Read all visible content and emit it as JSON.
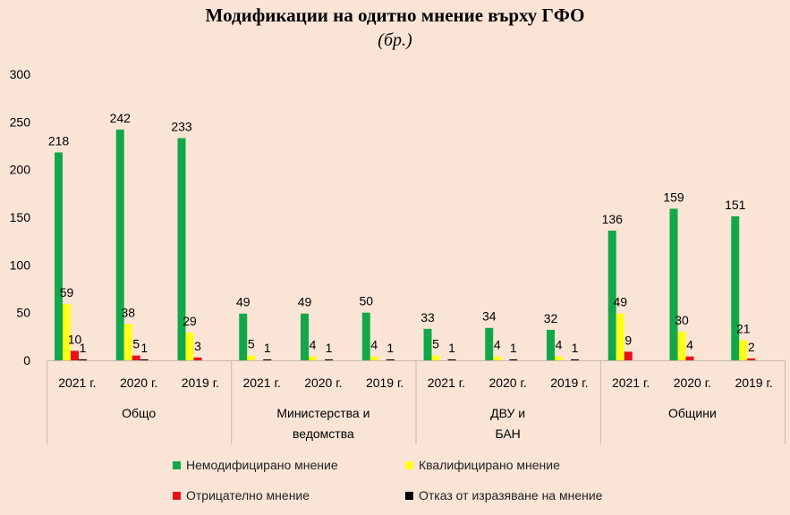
{
  "chart_data": {
    "type": "bar",
    "title": "Модификации на одитно мнение върху ГФО",
    "subtitle": "(бр.)",
    "ylim": [
      0,
      300
    ],
    "yticks": [
      0,
      50,
      100,
      150,
      200,
      250,
      300
    ],
    "grid": false,
    "legend_position": "bottom",
    "groups": [
      {
        "name": "Общо",
        "categories": [
          "2021 г.",
          "2020 г.",
          "2019 г."
        ]
      },
      {
        "name": "Министерства и ведомства",
        "categories": [
          "2021 г.",
          "2020 г.",
          "2019 г."
        ]
      },
      {
        "name": "ДВУ и БАН",
        "categories": [
          "2021 г.",
          "2020 г.",
          "2019 г."
        ]
      },
      {
        "name": "Общини",
        "categories": [
          "2021 г.",
          "2020 г.",
          "2019 г."
        ]
      }
    ],
    "series": [
      {
        "name": "Немодифицирано мнение",
        "color": "#12A84A",
        "values": [
          218,
          242,
          233,
          49,
          49,
          50,
          33,
          34,
          32,
          136,
          159,
          151
        ],
        "labels": [
          "218",
          "242",
          "233",
          "49",
          "49",
          "50",
          "33",
          "34",
          "32",
          "136",
          "159",
          "151"
        ]
      },
      {
        "name": "Квалифицирано мнение",
        "color": "#FFFF1A",
        "values": [
          59,
          38,
          29,
          5,
          4,
          4,
          5,
          4,
          4,
          49,
          30,
          21
        ],
        "labels": [
          "59",
          "38",
          "29",
          "5",
          "4",
          "4",
          "5",
          "4",
          "4",
          "49",
          "30",
          "21"
        ]
      },
      {
        "name": "Отрицателно мнение",
        "color": "#E8101C",
        "values": [
          10,
          5,
          3,
          0,
          0,
          0,
          0,
          0,
          0,
          9,
          4,
          2
        ],
        "labels": [
          "10",
          "5",
          "3",
          "",
          "",
          "",
          "",
          "",
          "",
          "9",
          "4",
          "2"
        ]
      },
      {
        "name": "Отказ от изразяване на мнение",
        "color": "#000000",
        "values": [
          1,
          1,
          0,
          1,
          1,
          1,
          1,
          1,
          1,
          0,
          0,
          0
        ],
        "labels": [
          "1",
          "1",
          "",
          "1",
          "1",
          "1",
          "1",
          "1",
          "1",
          "",
          "",
          ""
        ]
      }
    ]
  }
}
